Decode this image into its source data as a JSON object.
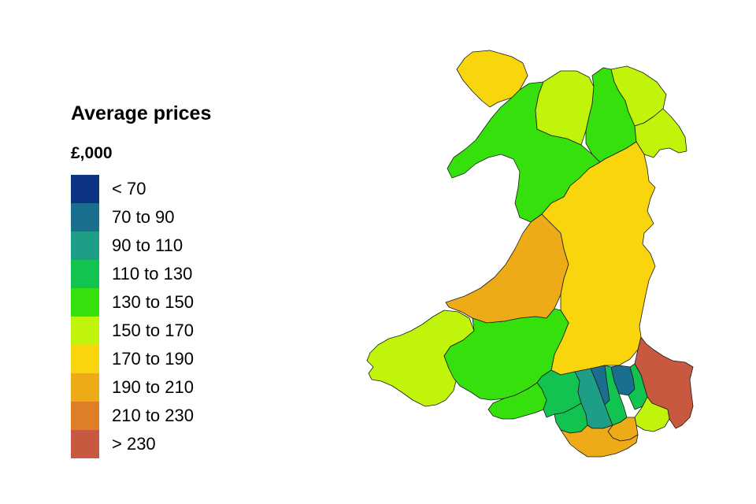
{
  "legend": {
    "title": "Average prices",
    "unit": "£,000",
    "bins": [
      {
        "label": "< 70",
        "color": "#0c3383"
      },
      {
        "label": "70 to 90",
        "color": "#1a6e8e"
      },
      {
        "label": "90 to 110",
        "color": "#1f9e87"
      },
      {
        "label": "110 to 130",
        "color": "#12c44f"
      },
      {
        "label": "130 to 150",
        "color": "#36e00d"
      },
      {
        "label": "150 to 170",
        "color": "#c0f40b"
      },
      {
        "label": "170 to 190",
        "color": "#f8d50c"
      },
      {
        "label": "190 to 210",
        "color": "#eeab18"
      },
      {
        "label": "210 to 230",
        "color": "#e07d27"
      },
      {
        "label": "> 230",
        "color": "#c95841"
      }
    ]
  },
  "regions": [
    {
      "id": "anglesey",
      "bin": 6
    },
    {
      "id": "gwynedd",
      "bin": 4
    },
    {
      "id": "conwy",
      "bin": 5
    },
    {
      "id": "denbighshire",
      "bin": 4
    },
    {
      "id": "flintshire",
      "bin": 5
    },
    {
      "id": "wrexham",
      "bin": 5
    },
    {
      "id": "ceredigion",
      "bin": 7
    },
    {
      "id": "powys",
      "bin": 6
    },
    {
      "id": "pembrokeshire",
      "bin": 5
    },
    {
      "id": "carmarthenshire",
      "bin": 4
    },
    {
      "id": "swansea",
      "bin": 4
    },
    {
      "id": "neath-port-talbot",
      "bin": 3
    },
    {
      "id": "bridgend",
      "bin": 3
    },
    {
      "id": "rhondda-cynon-taf",
      "bin": 2
    },
    {
      "id": "merthyr-tydfil",
      "bin": 1
    },
    {
      "id": "caerphilly",
      "bin": 3
    },
    {
      "id": "blaenau-gwent",
      "bin": 1
    },
    {
      "id": "torfaen",
      "bin": 3
    },
    {
      "id": "monmouthshire",
      "bin": 9
    },
    {
      "id": "newport",
      "bin": 5
    },
    {
      "id": "cardiff",
      "bin": 7
    },
    {
      "id": "vale-of-glamorgan",
      "bin": 7
    }
  ]
}
